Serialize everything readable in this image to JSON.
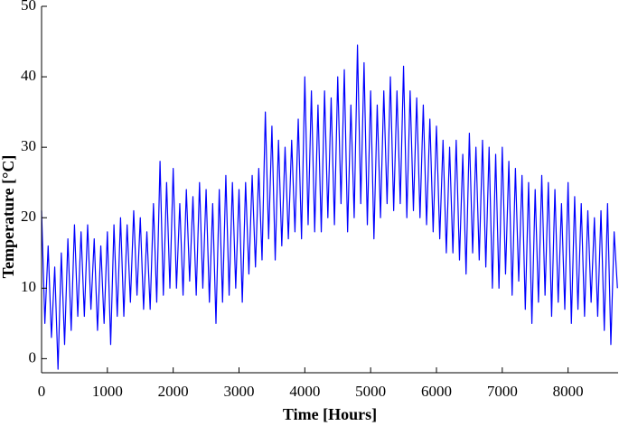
{
  "chart_data": {
    "type": "line",
    "xlabel": "Time [Hours]",
    "ylabel": "Temperature [°C]",
    "color": "#0000ff",
    "xlim": [
      0,
      8760
    ],
    "ylim": [
      -2,
      50
    ],
    "xticks": [
      0,
      1000,
      2000,
      3000,
      4000,
      5000,
      6000,
      7000,
      8000
    ],
    "yticks": [
      0,
      10,
      20,
      30,
      40,
      50
    ],
    "x": [
      0,
      50,
      100,
      150,
      200,
      250,
      300,
      350,
      400,
      450,
      500,
      550,
      600,
      650,
      700,
      750,
      800,
      850,
      900,
      950,
      1000,
      1050,
      1100,
      1150,
      1200,
      1250,
      1300,
      1350,
      1400,
      1450,
      1500,
      1550,
      1600,
      1650,
      1700,
      1750,
      1800,
      1850,
      1900,
      1950,
      2000,
      2050,
      2100,
      2150,
      2200,
      2250,
      2300,
      2350,
      2400,
      2450,
      2500,
      2550,
      2600,
      2650,
      2700,
      2750,
      2800,
      2850,
      2900,
      2950,
      3000,
      3050,
      3100,
      3150,
      3200,
      3250,
      3300,
      3350,
      3400,
      3450,
      3500,
      3550,
      3600,
      3650,
      3700,
      3750,
      3800,
      3850,
      3900,
      3950,
      4000,
      4050,
      4100,
      4150,
      4200,
      4250,
      4300,
      4350,
      4400,
      4450,
      4500,
      4550,
      4600,
      4650,
      4700,
      4750,
      4800,
      4850,
      4900,
      4950,
      5000,
      5050,
      5100,
      5150,
      5200,
      5250,
      5300,
      5350,
      5400,
      5450,
      5500,
      5550,
      5600,
      5650,
      5700,
      5750,
      5800,
      5850,
      5900,
      5950,
      6000,
      6050,
      6100,
      6150,
      6200,
      6250,
      6300,
      6350,
      6400,
      6450,
      6500,
      6550,
      6600,
      6650,
      6700,
      6750,
      6800,
      6850,
      6900,
      6950,
      7000,
      7050,
      7100,
      7150,
      7200,
      7250,
      7300,
      7350,
      7400,
      7450,
      7500,
      7550,
      7600,
      7650,
      7700,
      7750,
      7800,
      7850,
      7900,
      7950,
      8000,
      8050,
      8100,
      8150,
      8200,
      8250,
      8300,
      8350,
      8400,
      8450,
      8500,
      8550,
      8600,
      8650,
      8700,
      8750
    ],
    "values": [
      21,
      5,
      16,
      3,
      13,
      -1.5,
      15,
      2,
      17,
      4,
      19,
      6,
      18,
      6,
      19,
      7,
      17,
      4,
      16,
      5,
      18,
      2,
      19,
      6,
      20,
      6,
      19,
      8,
      21,
      9,
      20,
      7,
      18,
      7,
      22,
      8,
      28,
      9,
      25,
      10,
      27,
      10,
      22,
      9,
      24,
      11,
      23,
      9,
      25,
      10,
      24,
      8,
      22,
      5,
      24,
      8,
      26,
      9,
      25,
      10,
      24,
      8,
      25,
      12,
      26,
      13,
      27,
      14,
      35,
      17,
      33,
      14,
      31,
      16,
      30,
      17,
      31,
      18,
      34,
      17,
      40,
      19,
      38,
      18,
      36,
      18,
      38,
      20,
      37,
      19,
      40,
      22,
      41,
      18,
      36,
      20,
      44.5,
      22,
      42,
      19,
      38,
      17,
      36,
      20,
      38,
      22,
      40,
      21,
      38,
      22,
      41.5,
      20,
      38,
      21,
      37,
      20,
      36,
      19,
      34,
      18,
      33,
      17,
      31,
      15,
      30,
      15,
      31,
      14,
      29,
      12,
      32,
      15,
      30,
      14,
      31,
      13,
      30,
      10,
      29,
      10,
      30,
      12,
      28,
      9,
      27,
      11,
      26,
      7,
      25,
      5,
      24,
      8,
      26,
      9,
      25,
      6,
      24,
      8,
      22,
      7,
      25,
      5,
      23,
      7,
      22,
      6,
      21,
      8,
      20,
      6,
      21,
      4,
      22,
      2,
      18,
      10
    ]
  }
}
